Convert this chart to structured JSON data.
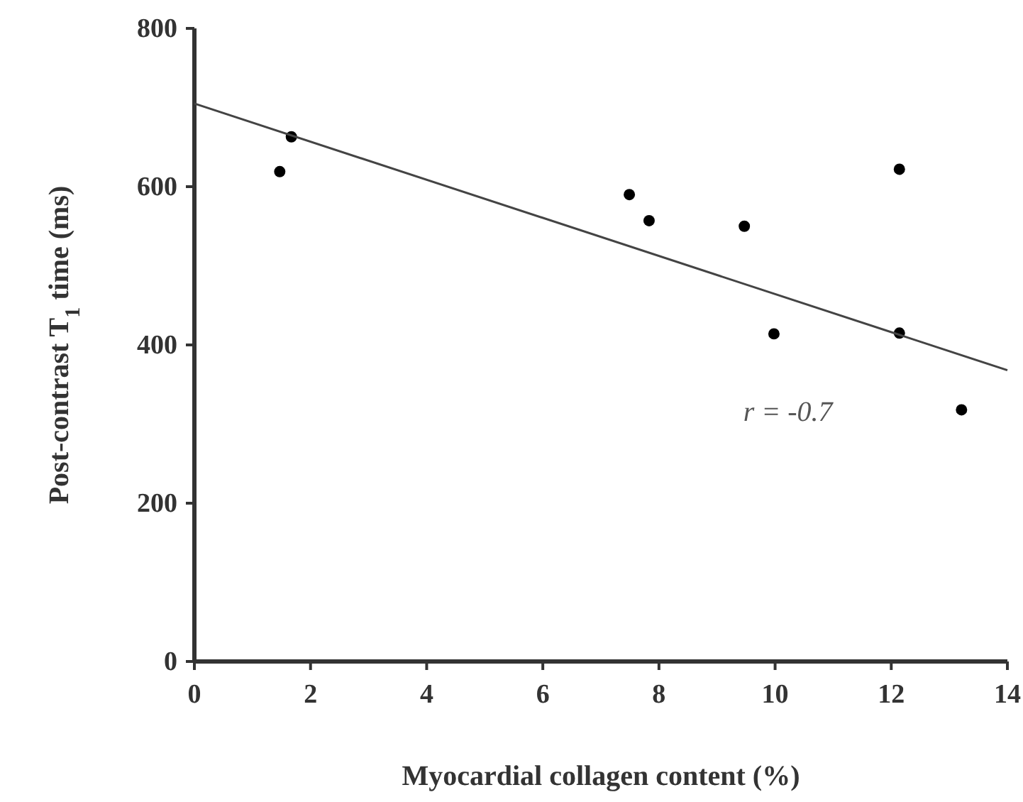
{
  "chart_data": {
    "type": "scatter",
    "xlabel": "Myocardial collagen content (%)",
    "ylabel": "Post-contrast T$_{1}$ time (ms)",
    "xlim": [
      0,
      14
    ],
    "xticks": [
      0,
      2,
      4,
      6,
      8,
      10,
      12,
      14
    ],
    "ylim": [
      0,
      800
    ],
    "yticks": [
      0,
      200,
      400,
      600,
      800
    ],
    "series": [
      {
        "color": "#000000",
        "marker": "circle",
        "x": [
          1.47,
          1.67,
          7.49,
          7.83,
          9.47,
          9.98,
          12.14,
          12.14,
          13.21
        ],
        "values": [
          619,
          663,
          590,
          557,
          550,
          414,
          622,
          415,
          318
        ]
      },
      {
        "type": "line",
        "color": "#444444",
        "x": [
          0,
          14
        ],
        "values": [
          705,
          368
        ]
      }
    ],
    "annotations": [
      "r = -0.7"
    ]
  }
}
